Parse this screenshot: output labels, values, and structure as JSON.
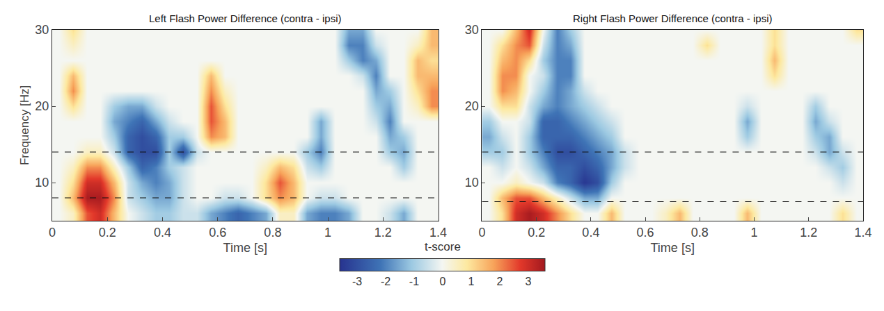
{
  "chart_data": [
    {
      "type": "heatmap",
      "title": "Left Flash Power Difference (contra - ipsi)",
      "x_label": "Time [s]",
      "y_label": "Frequency [Hz]",
      "xlim": [
        0,
        1.4
      ],
      "ylim": [
        5,
        30
      ],
      "xticks": [
        0,
        0.2,
        0.4,
        0.6,
        0.8,
        1,
        1.2,
        1.4
      ],
      "yticks": [
        10,
        20,
        30
      ],
      "hlines": [
        8,
        14
      ],
      "colorbar": {
        "title": "t-score",
        "range": [
          -3.6,
          3.6
        ],
        "ticks": [
          -3,
          -2,
          -1,
          0,
          1,
          2,
          3
        ]
      },
      "x": [
        0.025,
        0.075,
        0.125,
        0.175,
        0.225,
        0.275,
        0.325,
        0.375,
        0.425,
        0.475,
        0.525,
        0.575,
        0.625,
        0.675,
        0.725,
        0.775,
        0.825,
        0.875,
        0.925,
        0.975,
        1.025,
        1.075,
        1.125,
        1.175,
        1.225,
        1.275,
        1.325,
        1.375
      ],
      "y": [
        6,
        8,
        10,
        12,
        14,
        16,
        18,
        20,
        22,
        24,
        26,
        28,
        30
      ],
      "z": [
        [
          0,
          0.5,
          2.5,
          3,
          1.5,
          0,
          -0.5,
          -1,
          -1,
          -0.5,
          -0.5,
          -1.5,
          -2,
          -2.5,
          -2,
          -1.5,
          0.5,
          0.5,
          -1.5,
          -2,
          -2,
          -1.5,
          0,
          0,
          -0.5,
          -1.5,
          0,
          0
        ],
        [
          0,
          1.5,
          3.5,
          3.5,
          2,
          -0.5,
          -1,
          -1.5,
          -1.5,
          -0.5,
          0,
          0,
          -0.5,
          -0.5,
          0,
          1,
          2,
          1.5,
          0,
          -0.5,
          -0.5,
          0,
          0,
          0,
          0,
          0,
          0,
          0
        ],
        [
          0,
          1,
          3,
          3,
          1.5,
          -0.5,
          -1.5,
          -2,
          -1.5,
          -0.5,
          0,
          0,
          0,
          0,
          0,
          1,
          2.5,
          1.5,
          0,
          0,
          0,
          0,
          0,
          0,
          0,
          0,
          0,
          0
        ],
        [
          0,
          0.5,
          2,
          2,
          0.5,
          -1,
          -2.5,
          -2,
          -1,
          -0.5,
          0,
          0,
          0,
          0,
          0,
          0.5,
          1.5,
          1,
          -0.5,
          -1,
          0,
          0,
          0,
          0,
          0,
          -1,
          0,
          0
        ],
        [
          0,
          0,
          0.5,
          0.5,
          -0.5,
          -2.5,
          -3,
          -3,
          -1,
          -3,
          -0.5,
          0,
          0,
          0,
          0,
          0,
          0,
          0,
          -1,
          -2,
          0,
          0,
          0,
          0,
          -1,
          -1.5,
          0,
          0
        ],
        [
          0,
          0,
          0,
          0,
          -1,
          -2.5,
          -3,
          -2.5,
          -1,
          -1,
          0,
          2,
          1.5,
          0,
          0,
          0,
          0,
          0,
          0,
          -1.5,
          0,
          0,
          0,
          0,
          -1.5,
          -1,
          0,
          0
        ],
        [
          0,
          0,
          0,
          0,
          -1.5,
          -2,
          -2.5,
          -1.5,
          -0.5,
          0,
          0,
          2.5,
          1.5,
          0,
          0,
          0,
          0,
          0,
          0,
          -1.5,
          0,
          0,
          0,
          -0.5,
          -2,
          0,
          0,
          0
        ],
        [
          0,
          1,
          0,
          0,
          -1,
          -1.5,
          -1.5,
          -0.5,
          0,
          0,
          0,
          2.5,
          1,
          0,
          0,
          0,
          0,
          0,
          0,
          0,
          0,
          0,
          0,
          -1,
          -1.5,
          0,
          0.5,
          2
        ],
        [
          0,
          2,
          0,
          0,
          0,
          0,
          0,
          0,
          0,
          0,
          0,
          2,
          0.5,
          0,
          0,
          0,
          0,
          0,
          0,
          0,
          0,
          0,
          0,
          -1.5,
          -1,
          0,
          1,
          2
        ],
        [
          0,
          1.5,
          0,
          0,
          0,
          0,
          0,
          0,
          0,
          0,
          0,
          1.5,
          0,
          0,
          0,
          0,
          0,
          0,
          0,
          0,
          0,
          0,
          -0.5,
          -2,
          0,
          0,
          1.5,
          1.5
        ],
        [
          0,
          0,
          0,
          0,
          0,
          0,
          0,
          0,
          0,
          0,
          0,
          0,
          0,
          0,
          0,
          0,
          0,
          0,
          0,
          0,
          0,
          -1,
          -2,
          -1.5,
          0,
          0,
          1.5,
          1
        ],
        [
          0,
          0.5,
          0,
          0,
          0,
          0,
          0,
          0,
          0,
          0,
          0,
          0,
          0,
          0,
          0,
          0,
          0,
          0,
          0,
          0,
          0,
          -2,
          -2,
          -0.5,
          0,
          0,
          0.5,
          1.5
        ],
        [
          0,
          1,
          0,
          0,
          0,
          0,
          0,
          0,
          0,
          0,
          0,
          0,
          0,
          0,
          0,
          0,
          0,
          0,
          0,
          0,
          0,
          -1.5,
          -1.5,
          0,
          0,
          0,
          0,
          1.5
        ]
      ]
    },
    {
      "type": "heatmap",
      "title": "Right Flash Power Difference (contra - ipsi)",
      "x_label": "Time [s]",
      "xlim": [
        0,
        1.4
      ],
      "ylim": [
        5,
        30
      ],
      "xticks": [
        0,
        0.2,
        0.4,
        0.6,
        0.8,
        1,
        1.2,
        1.4
      ],
      "yticks": [
        10,
        20,
        30
      ],
      "hlines": [
        7.5,
        14
      ],
      "x": [
        0.025,
        0.075,
        0.125,
        0.175,
        0.225,
        0.275,
        0.325,
        0.375,
        0.425,
        0.475,
        0.525,
        0.575,
        0.625,
        0.675,
        0.725,
        0.775,
        0.825,
        0.875,
        0.925,
        0.975,
        1.025,
        1.075,
        1.125,
        1.175,
        1.225,
        1.275,
        1.325,
        1.375
      ],
      "y": [
        6,
        8,
        10,
        12,
        14,
        16,
        18,
        20,
        22,
        24,
        26,
        28,
        30
      ],
      "z": [
        [
          0,
          1,
          3,
          3.5,
          3,
          2,
          1,
          0,
          0,
          1.5,
          0,
          0,
          0,
          0.5,
          1.5,
          0,
          0,
          0,
          0,
          1.5,
          0,
          0,
          0,
          0,
          0,
          0,
          1,
          0
        ],
        [
          0,
          1.5,
          2.5,
          2.5,
          1.5,
          0.5,
          -0.5,
          -1.5,
          -1.5,
          0,
          0,
          0,
          0,
          0,
          0,
          0,
          0,
          0,
          0,
          0,
          0,
          0,
          0,
          0,
          0,
          0,
          0,
          0
        ],
        [
          0,
          0,
          0.5,
          0,
          -0.5,
          -2,
          -2.5,
          -3.5,
          -3,
          -1,
          0,
          0,
          0,
          0,
          0,
          0,
          0,
          0,
          0,
          0,
          0,
          0,
          0,
          0,
          0,
          0,
          -0.5,
          0
        ],
        [
          0,
          -0.5,
          0,
          -0.5,
          -1.5,
          -2.5,
          -2.5,
          -3,
          -2.5,
          -1.5,
          -0.5,
          0,
          0,
          0,
          0,
          0,
          0,
          0,
          0,
          0,
          0,
          0,
          0,
          0,
          0,
          -0.5,
          -1,
          0
        ],
        [
          -1,
          -1,
          0,
          -1,
          -2,
          -3,
          -3,
          -2.5,
          -2,
          -1.5,
          -0.5,
          0,
          0,
          0,
          0,
          0,
          0,
          0,
          0,
          0,
          0,
          0,
          0,
          0,
          -0.5,
          -1.5,
          -0.5,
          0
        ],
        [
          -1.5,
          -0.5,
          0,
          -1,
          -2.5,
          -2.5,
          -2.5,
          -2,
          -1.5,
          -1,
          0,
          0,
          0,
          0,
          0,
          0,
          0,
          0,
          0,
          -1,
          0,
          0,
          0,
          0,
          -1,
          -1.5,
          0,
          0
        ],
        [
          -1,
          0,
          0,
          -0.5,
          -2.5,
          -2.5,
          -2,
          -1.5,
          -1,
          -0.5,
          0,
          0,
          0,
          0,
          0,
          0,
          0,
          0,
          0,
          -1.5,
          0,
          0,
          0,
          0,
          -1.5,
          -0.5,
          0,
          0
        ],
        [
          0,
          1,
          1,
          -0.5,
          -1.5,
          -2,
          -1.5,
          -1,
          -0.5,
          0,
          0,
          0,
          0,
          0,
          0,
          0,
          0,
          0,
          0,
          -0.5,
          0,
          0,
          0,
          0,
          -1,
          0,
          0,
          0
        ],
        [
          0,
          2,
          1.5,
          0,
          -1,
          -2,
          -1.5,
          -0.5,
          0,
          0,
          0,
          0,
          0,
          0,
          0,
          0,
          0,
          0,
          0,
          0,
          0,
          0,
          0,
          0,
          0,
          0,
          0,
          0
        ],
        [
          0,
          2,
          2,
          0,
          -0.5,
          -2,
          -2,
          0,
          0,
          0,
          0,
          0,
          0,
          0,
          0,
          0,
          0,
          0,
          0,
          0,
          0,
          1,
          0,
          0,
          0,
          0,
          0,
          0
        ],
        [
          0,
          1.5,
          2,
          1,
          -1,
          -2,
          -2,
          0,
          0,
          0,
          0,
          0,
          0,
          0,
          0,
          0,
          0,
          0,
          0,
          0,
          0,
          1.5,
          0,
          0,
          0,
          0,
          0,
          0
        ],
        [
          0,
          1,
          2,
          2.5,
          -0.5,
          -2,
          -1.5,
          0,
          0,
          0,
          0,
          0,
          0,
          0,
          0,
          0,
          1,
          0,
          0,
          0,
          0,
          1,
          0,
          0,
          0,
          0,
          0,
          0
        ],
        [
          0,
          0,
          1.5,
          3,
          0,
          -2,
          -1,
          0,
          0,
          0,
          0,
          0,
          0,
          0,
          0,
          0,
          0,
          0,
          0,
          0,
          0,
          1,
          0,
          0,
          0,
          0,
          0,
          1
        ]
      ]
    }
  ]
}
